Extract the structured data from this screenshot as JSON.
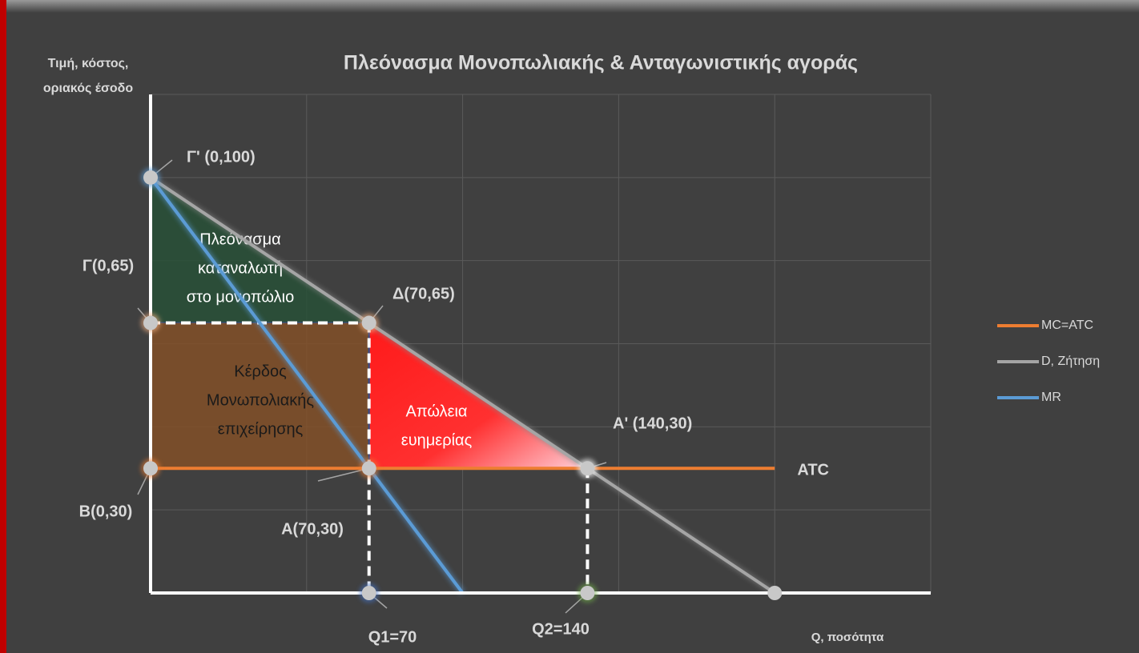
{
  "chart_data": {
    "type": "line",
    "title": "Πλεόνασμα Μονοπωλιακής & Ανταγωνιστικής αγοράς",
    "y_label": [
      "Τιμή, κόστος,",
      "οριακός έσοδο"
    ],
    "x_label": "Q, ποσότητα",
    "xlim": [
      0,
      250
    ],
    "ylim": [
      0,
      120
    ],
    "xticks": [
      50,
      100,
      150,
      200,
      250
    ],
    "yticks": [
      20,
      40,
      60,
      80,
      100,
      120
    ],
    "grid": true,
    "tick_labels": false,
    "legend": "right",
    "series": [
      {
        "name": "MC=ATC",
        "color": "#ed7d31",
        "x": [
          0,
          200
        ],
        "values": [
          30,
          30
        ],
        "line_label": "ATC"
      },
      {
        "name": "D, Ζήτηση",
        "color": "#a5a5a5",
        "x": [
          0,
          200
        ],
        "values": [
          100,
          0
        ]
      },
      {
        "name": "MR",
        "color": "#5b9bd5",
        "x": [
          0,
          100
        ],
        "values": [
          100,
          0
        ]
      }
    ],
    "points": [
      {
        "label": "Γ' (0,100)",
        "x": 0,
        "y": 100
      },
      {
        "label": "Γ(0,65)",
        "x": 0,
        "y": 65
      },
      {
        "label": "Δ(70,65)",
        "x": 70,
        "y": 65
      },
      {
        "label": "Β(0,30)",
        "x": 0,
        "y": 30
      },
      {
        "label": "Α(70,30)",
        "x": 70,
        "y": 30
      },
      {
        "label": "Α' (140,30)",
        "x": 140,
        "y": 30
      },
      {
        "label": "Q1=70",
        "x": 70,
        "y": 0
      },
      {
        "label": "Q2=140",
        "x": 140,
        "y": 0
      }
    ],
    "regions": [
      {
        "label": [
          "Πλεόνασμα",
          "καταναλωτή",
          "στο μονοπώλιο"
        ],
        "vertices": [
          [
            0,
            100
          ],
          [
            0,
            65
          ],
          [
            70,
            65
          ]
        ]
      },
      {
        "label": [
          "Κέρδος",
          "Μονωπολιακής",
          "επιχείρησης"
        ],
        "vertices": [
          [
            0,
            65
          ],
          [
            70,
            65
          ],
          [
            70,
            30
          ],
          [
            0,
            30
          ]
        ]
      },
      {
        "label": [
          "Απώλεια",
          "ευημερίας"
        ],
        "vertices": [
          [
            70,
            65
          ],
          [
            70,
            30
          ],
          [
            140,
            30
          ]
        ]
      }
    ]
  }
}
